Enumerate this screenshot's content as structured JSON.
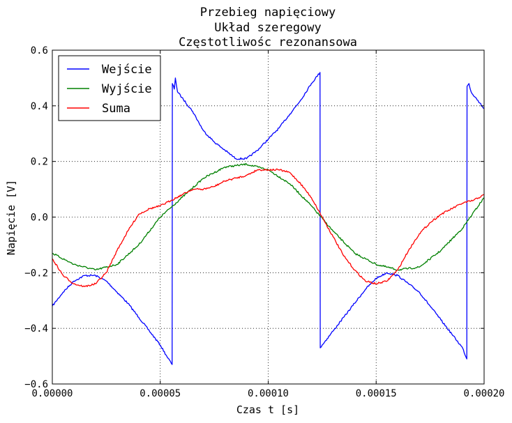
{
  "chart_data": {
    "type": "line",
    "title": [
      "Przebieg napięciowy",
      "Układ szeregowy",
      "Częstotliwośc rezonansowa"
    ],
    "xlabel": "Czas t [s]",
    "ylabel": "Napięcie [V]",
    "xlim": [
      0.0,
      0.0002
    ],
    "ylim": [
      -0.6,
      0.6
    ],
    "xticks": [
      0.0,
      5e-05,
      0.0001,
      0.00015,
      0.0002
    ],
    "xtick_labels": [
      "0.00000",
      "0.00005",
      "0.00010",
      "0.00015",
      "0.00020"
    ],
    "yticks": [
      -0.6,
      -0.4,
      -0.2,
      0.0,
      0.2,
      0.4,
      0.6
    ],
    "ytick_labels": [
      "−0.6",
      "−0.4",
      "−0.2",
      "0.0",
      "0.2",
      "0.4",
      "0.6"
    ],
    "grid": true,
    "legend_position": "top-left",
    "series": [
      {
        "name": "Wejście",
        "color": "#0000ff",
        "x": [
          0.0,
          5e-06,
          1e-05,
          1.5e-05,
          2e-05,
          2.5e-05,
          3e-05,
          3.5e-05,
          4e-05,
          4.5e-05,
          5e-05,
          5.3e-05,
          5.55e-05,
          5.56e-05,
          5.65e-05,
          5.7e-05,
          5.8e-05,
          6e-05,
          6.5e-05,
          7e-05,
          7.5e-05,
          8e-05,
          8.5e-05,
          9e-05,
          9.5e-05,
          0.0001,
          0.000105,
          0.00011,
          0.000115,
          0.00012,
          0.000124,
          0.0001241,
          0.000125,
          0.00013,
          0.000135,
          0.00014,
          0.000145,
          0.00015,
          0.000155,
          0.00016,
          0.000165,
          0.00017,
          0.000175,
          0.00018,
          0.000185,
          0.00019,
          0.000192,
          0.0001921,
          0.000193,
          0.000194,
          0.000196,
          0.000198,
          0.0002
        ],
        "y": [
          -0.32,
          -0.27,
          -0.23,
          -0.21,
          -0.21,
          -0.23,
          -0.27,
          -0.31,
          -0.36,
          -0.41,
          -0.46,
          -0.5,
          -0.53,
          0.48,
          0.46,
          0.5,
          0.45,
          0.43,
          0.38,
          0.31,
          0.27,
          0.24,
          0.21,
          0.21,
          0.24,
          0.28,
          0.32,
          0.37,
          0.42,
          0.48,
          0.52,
          -0.47,
          -0.46,
          -0.41,
          -0.36,
          -0.31,
          -0.26,
          -0.22,
          -0.2,
          -0.21,
          -0.24,
          -0.27,
          -0.32,
          -0.37,
          -0.42,
          -0.47,
          -0.51,
          0.47,
          0.48,
          0.45,
          0.43,
          0.41,
          0.39
        ]
      },
      {
        "name": "Wyjście",
        "color": "#008000",
        "x": [
          0.0,
          1e-05,
          2e-05,
          3e-05,
          4e-05,
          5e-05,
          6e-05,
          7e-05,
          8e-05,
          9e-05,
          0.0001,
          0.00011,
          0.00012,
          0.00013,
          0.00014,
          0.00015,
          0.00016,
          0.00017,
          0.00018,
          0.00019,
          0.0002
        ],
        "y": [
          -0.13,
          -0.17,
          -0.19,
          -0.17,
          -0.1,
          0.0,
          0.07,
          0.14,
          0.18,
          0.19,
          0.17,
          0.12,
          0.04,
          -0.05,
          -0.13,
          -0.17,
          -0.19,
          -0.18,
          -0.12,
          -0.04,
          0.07
        ]
      },
      {
        "name": "Suma",
        "color": "#ff0000",
        "x": [
          0.0,
          5e-06,
          1e-05,
          1.5e-05,
          2e-05,
          2.5e-05,
          3e-05,
          3.5e-05,
          4e-05,
          4.5e-05,
          5e-05,
          5.5e-05,
          6e-05,
          6.5e-05,
          7e-05,
          7.5e-05,
          8e-05,
          8.5e-05,
          9e-05,
          9.5e-05,
          0.0001,
          0.000105,
          0.00011,
          0.000115,
          0.00012,
          0.000125,
          0.00013,
          0.000135,
          0.00014,
          0.000145,
          0.00015,
          0.000155,
          0.00016,
          0.000165,
          0.00017,
          0.000175,
          0.00018,
          0.000185,
          0.00019,
          0.000195,
          0.0002
        ],
        "y": [
          -0.15,
          -0.21,
          -0.24,
          -0.25,
          -0.24,
          -0.2,
          -0.12,
          -0.05,
          0.01,
          0.03,
          0.04,
          0.06,
          0.08,
          0.1,
          0.1,
          0.11,
          0.13,
          0.14,
          0.15,
          0.17,
          0.17,
          0.17,
          0.16,
          0.12,
          0.07,
          0.0,
          -0.07,
          -0.14,
          -0.19,
          -0.23,
          -0.24,
          -0.23,
          -0.19,
          -0.12,
          -0.06,
          -0.02,
          0.01,
          0.03,
          0.05,
          0.06,
          0.08
        ]
      }
    ]
  }
}
